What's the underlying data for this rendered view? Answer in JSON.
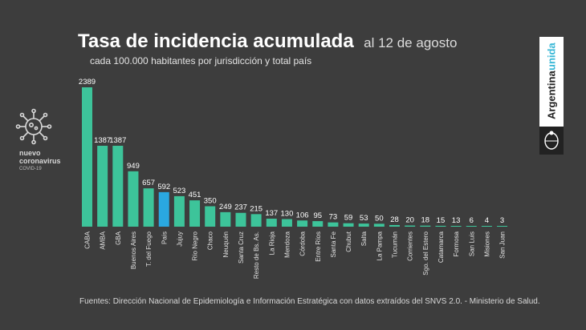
{
  "header": {
    "title": "Tasa de incidencia acumulada",
    "date": "al 12 de agosto",
    "subtitle": "cada 100.000 habitantes por jurisdicción y total país"
  },
  "badge": {
    "line1": "nuevo",
    "line2": "coronavirus",
    "line3": "COVID-19",
    "icon": "virus-icon"
  },
  "brand": {
    "part1": "Argentina",
    "part2": "unida",
    "accent_color": "#38b7d6",
    "seal_icon": "national-seal-icon"
  },
  "colors": {
    "bar": "#3dc49a",
    "highlight": "#2aa8e0",
    "background": "#3d3d3d"
  },
  "chart_data": {
    "type": "bar",
    "categories": [
      "CABA",
      "AMBA",
      "GBA",
      "Buenos Aires",
      "T. del Fuego",
      "País",
      "Jujuy",
      "Río Negro",
      "Chaco",
      "Neuquén",
      "Santa Cruz",
      "Resto de Bs. As.",
      "La Rioja",
      "Mendoza",
      "Córdoba",
      "Entre Ríos",
      "Santa Fe",
      "Chubut",
      "Salta",
      "La Pampa",
      "Tucumán",
      "Corrientes",
      "Sgo. del Estero",
      "Catamarca",
      "Formosa",
      "San Luis",
      "Misiones",
      "San Juan"
    ],
    "values": [
      2389,
      1387,
      1387,
      949,
      657,
      592,
      523,
      451,
      350,
      249,
      237,
      215,
      137,
      130,
      106,
      95,
      73,
      59,
      53,
      50,
      28,
      20,
      18,
      15,
      13,
      6,
      4,
      3
    ],
    "highlight_category": "País",
    "ylim": [
      0,
      2389
    ],
    "grid": false,
    "legend": "none"
  },
  "source": "Fuentes: Dirección Nacional de Epidemiología e Información Estratégica con datos extraídos del SNVS 2.0. - Ministerio de Salud."
}
